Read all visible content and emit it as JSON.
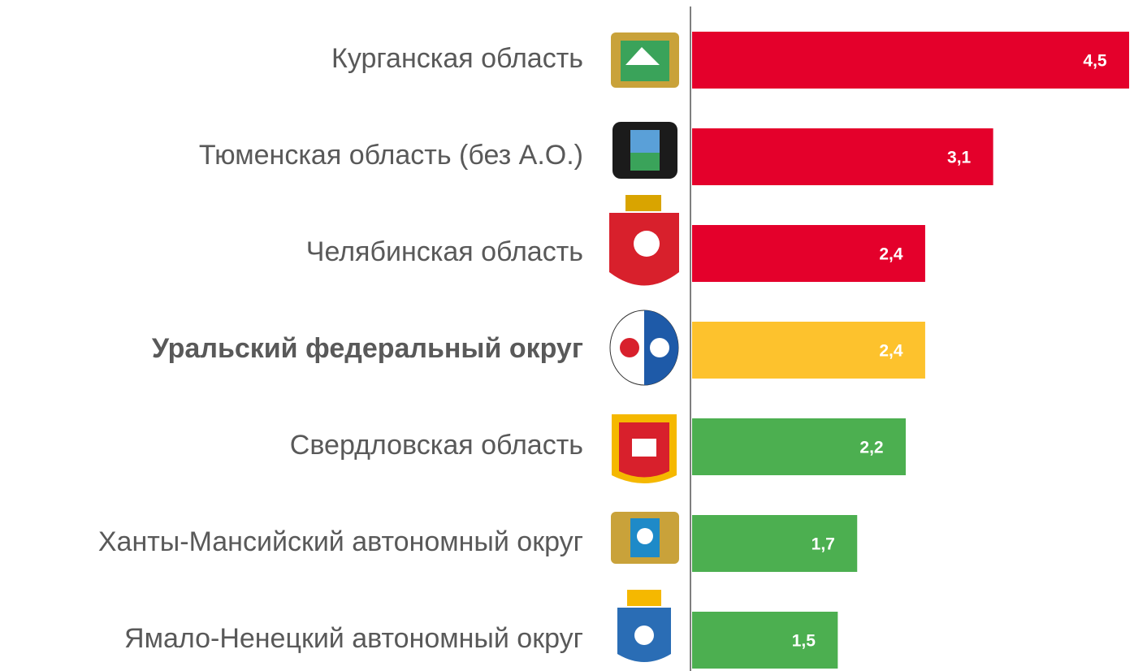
{
  "chart_data": {
    "type": "bar",
    "orientation": "horizontal",
    "categories": [
      "Курганская область",
      "Тюменская область (без А.О.)",
      "Челябинская область",
      "Уральский федеральный округ",
      "Свердловская область",
      "Ханты-Мансийский автономный округ",
      "Ямало-Ненецкий автономный округ"
    ],
    "values": [
      4.5,
      3.1,
      2.4,
      2.4,
      2.2,
      1.7,
      1.5
    ],
    "value_labels": [
      "4,5",
      "3,1",
      "2,4",
      "2,4",
      "2,2",
      "1,7",
      "1,5"
    ],
    "colors": [
      "#e4002b",
      "#e4002b",
      "#e4002b",
      "#fdc22d",
      "#4caf50",
      "#4caf50",
      "#4caf50"
    ],
    "font_weights": [
      "normal",
      "normal",
      "normal",
      "bold",
      "normal",
      "normal",
      "normal"
    ]
  }
}
